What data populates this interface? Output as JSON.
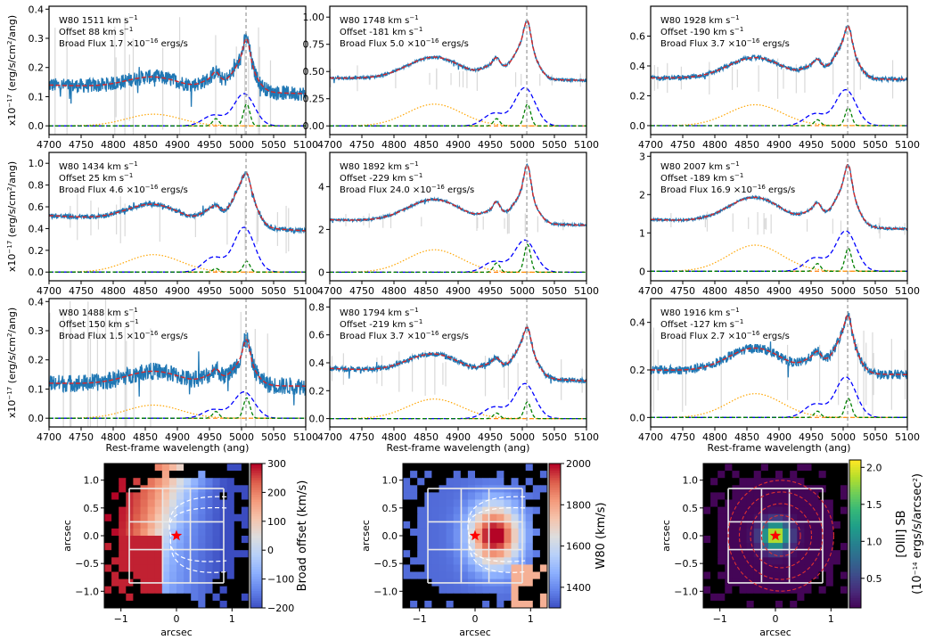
{
  "chart_data": {
    "type": "line",
    "x_tick_labels": [
      "4700",
      "4750",
      "4800",
      "4850",
      "4900",
      "4950",
      "5000",
      "5050",
      "5100"
    ],
    "xlim": [
      4700,
      5100
    ],
    "xlabel": "Rest-frame wavelength (ang)",
    "ylabel_prefix": "x10",
    "ylabel_exp": "−17",
    "ylabel_units": " (erg/s/cm",
    "ylabel_sq": "2",
    "ylabel_end": "/ang)",
    "line_center": 5007,
    "panels": [
      {
        "w80": "W80 1511 km s",
        "offset": "Offset 88 km s",
        "flux": "Broad Flux 1.7 ×10",
        "flux_units": " ergs/s",
        "ylim": [
          -0.03,
          0.41
        ],
        "yticks": [
          "0.0",
          "0.1",
          "0.2",
          "0.3",
          "0.4"
        ],
        "ytick_values": [
          0,
          0.1,
          0.2,
          0.3,
          0.4
        ],
        "continuum_left": 0.14,
        "continuum_right": 0.11,
        "peak": 0.39,
        "broad_amp": 0.11,
        "broad_oiii": 0.11,
        "narrow_amp": 0.075,
        "hb_amp": 0.04,
        "noise": 0.025
      },
      {
        "w80": "W80 1748 km s",
        "offset": "Offset -181 km s",
        "flux": "Broad Flux 5.0 ×10",
        "flux_units": " ergs/s",
        "ylim": [
          -0.08,
          1.1
        ],
        "yticks": [
          "0.00",
          "0.25",
          "0.50",
          "0.75",
          "1.00"
        ],
        "ytick_values": [
          0,
          0.25,
          0.5,
          0.75,
          1.0
        ],
        "continuum_left": 0.44,
        "continuum_right": 0.42,
        "peak": 0.92,
        "broad_amp": 0.2,
        "broad_oiii": 0.35,
        "narrow_amp": 0.2,
        "hb_amp": 0.2,
        "noise": 0.012
      },
      {
        "w80": "W80 1928 km s",
        "offset": "Offset -190 km s",
        "flux": "Broad Flux 3.7 ×10",
        "flux_units": " ergs/s",
        "ylim": [
          -0.06,
          0.8
        ],
        "yticks": [
          "0.0",
          "0.2",
          "0.4",
          "0.6"
        ],
        "ytick_values": [
          0,
          0.2,
          0.4,
          0.6
        ],
        "continuum_left": 0.32,
        "continuum_right": 0.31,
        "peak": 0.66,
        "broad_amp": 0.13,
        "broad_oiii": 0.24,
        "narrow_amp": 0.12,
        "hb_amp": 0.14,
        "noise": 0.015
      },
      {
        "w80": "W80 1434 km s",
        "offset": "Offset 25 km s",
        "flux": "Broad Flux 4.6 ×10",
        "flux_units": " ergs/s",
        "ylim": [
          -0.08,
          1.1
        ],
        "yticks": [
          "0.0",
          "0.2",
          "0.4",
          "0.6",
          "0.8",
          "1.0"
        ],
        "ytick_values": [
          0,
          0.2,
          0.4,
          0.6,
          0.8,
          1.0
        ],
        "continuum_left": 0.52,
        "continuum_right": 0.38,
        "peak": 0.9,
        "broad_amp": 0.12,
        "broad_oiii": 0.41,
        "narrow_amp": 0.1,
        "hb_amp": 0.16,
        "noise": 0.022
      },
      {
        "w80": "W80 1892 km s",
        "offset": "Offset -229 km s",
        "flux": "Broad Flux 24.0 ×10",
        "flux_units": " ergs/s",
        "ylim": [
          -0.4,
          5.6
        ],
        "yticks": [
          "0",
          "2",
          "4"
        ],
        "ytick_values": [
          0,
          2,
          4
        ],
        "continuum_left": 2.45,
        "continuum_right": 2.2,
        "peak": 5.0,
        "broad_amp": 0.9,
        "broad_oiii": 1.5,
        "narrow_amp": 1.3,
        "hb_amp": 1.05,
        "noise": 0.05
      },
      {
        "w80": "W80 2007 km s",
        "offset": "Offset -189 km s",
        "flux": "Broad Flux 16.9 ×10",
        "flux_units": " ergs/s",
        "ylim": [
          -0.25,
          3.1
        ],
        "yticks": [
          "0",
          "1",
          "2",
          "3"
        ],
        "ytick_values": [
          0,
          1,
          2,
          3
        ],
        "continuum_left": 1.35,
        "continuum_right": 1.1,
        "peak": 2.7,
        "broad_amp": 0.5,
        "broad_oiii": 1.05,
        "narrow_amp": 0.6,
        "hb_amp": 0.68,
        "noise": 0.03
      },
      {
        "w80": "W80 1488 km s",
        "offset": "Offset 150 km s",
        "flux": "Broad Flux 1.5 ×10",
        "flux_units": " ergs/s",
        "ylim": [
          -0.03,
          0.41
        ],
        "yticks": [
          "0.0",
          "0.1",
          "0.2",
          "0.3",
          "0.4"
        ],
        "ytick_values": [
          0,
          0.1,
          0.2,
          0.3,
          0.4
        ],
        "continuum_left": 0.12,
        "continuum_right": 0.11,
        "peak": 0.34,
        "broad_amp": 0.02,
        "broad_oiii": 0.09,
        "narrow_amp": 0.07,
        "hb_amp": 0.045,
        "noise": 0.03
      },
      {
        "w80": "W80 1794 km s",
        "offset": "Offset -219 km s",
        "flux": "Broad Flux 3.7 ×10",
        "flux_units": " ergs/s",
        "ylim": [
          -0.06,
          0.86
        ],
        "yticks": [
          "0.0",
          "0.2",
          "0.4",
          "0.6",
          "0.8"
        ],
        "ytick_values": [
          0,
          0.2,
          0.4,
          0.6,
          0.8
        ],
        "continuum_left": 0.36,
        "continuum_right": 0.27,
        "peak": 0.72,
        "broad_amp": 0.13,
        "broad_oiii": 0.25,
        "narrow_amp": 0.12,
        "hb_amp": 0.14,
        "noise": 0.018
      },
      {
        "w80": "W80 1916 km s",
        "offset": "Offset -127 km s",
        "flux": "Broad Flux 2.7 ×10",
        "flux_units": " ergs/s",
        "ylim": [
          -0.04,
          0.5
        ],
        "yticks": [
          "0.0",
          "0.2",
          "0.4"
        ],
        "ytick_values": [
          0,
          0.2,
          0.4
        ],
        "continuum_left": 0.2,
        "continuum_right": 0.18,
        "peak": 0.44,
        "broad_amp": 0.06,
        "broad_oiii": 0.17,
        "narrow_amp": 0.08,
        "hb_amp": 0.1,
        "noise": 0.02
      }
    ],
    "maps": [
      {
        "name": "broad-offset-map",
        "colorbar_label": "Broad offset (km/s)",
        "cb_ticks": [
          "300",
          "200",
          "100",
          "0",
          "−100",
          "−200"
        ],
        "cb_values": [
          300,
          200,
          100,
          0,
          -100,
          -200
        ],
        "cb_range": [
          -200,
          300
        ],
        "colormap": "coolwarm",
        "pattern": "offset"
      },
      {
        "name": "w80-map",
        "colorbar_label": "W80 (km/s)",
        "cb_ticks": [
          "2000",
          "1800",
          "1600",
          "1400"
        ],
        "cb_values": [
          2000,
          1800,
          1600,
          1400
        ],
        "cb_range": [
          1300,
          2000
        ],
        "colormap": "coolwarm",
        "pattern": "w80"
      },
      {
        "name": "oiii-sb-map",
        "colorbar_label": "[OIII] SB",
        "colorbar_label2": "(10",
        "colorbar_exp": "−14",
        "colorbar_label3": " ergs/s/arcsec",
        "colorbar_sq": "2",
        "colorbar_end": ")",
        "cb_ticks": [
          "2.0",
          "1.5",
          "1.0",
          "0.5"
        ],
        "cb_values": [
          2.0,
          1.5,
          1.0,
          0.5
        ],
        "cb_range": [
          0.1,
          2.1
        ],
        "colormap": "viridis",
        "pattern": "sb"
      }
    ],
    "map_axis": {
      "label": "arcsec",
      "x_ticks": [
        "−1",
        "0",
        "1"
      ],
      "x_values": [
        -1,
        0,
        1
      ],
      "y_ticks": [
        "1.0",
        "0.5",
        "0.0",
        "−0.5",
        "−1.0"
      ],
      "y_values": [
        1.0,
        0.5,
        0.0,
        -0.5,
        -1.0
      ],
      "range": [
        -1.3,
        1.3
      ]
    },
    "exponents": {
      "kms": "−1",
      "flux": "−16"
    }
  },
  "colors": {
    "data": "#1f77b4",
    "model": "#d62728",
    "broad": "#0000ff",
    "narrow": "#008000",
    "hbeta": "#ffa500",
    "baseline": "#ff7f0e",
    "raw": "#d9d9d9",
    "vline": "#999999"
  }
}
